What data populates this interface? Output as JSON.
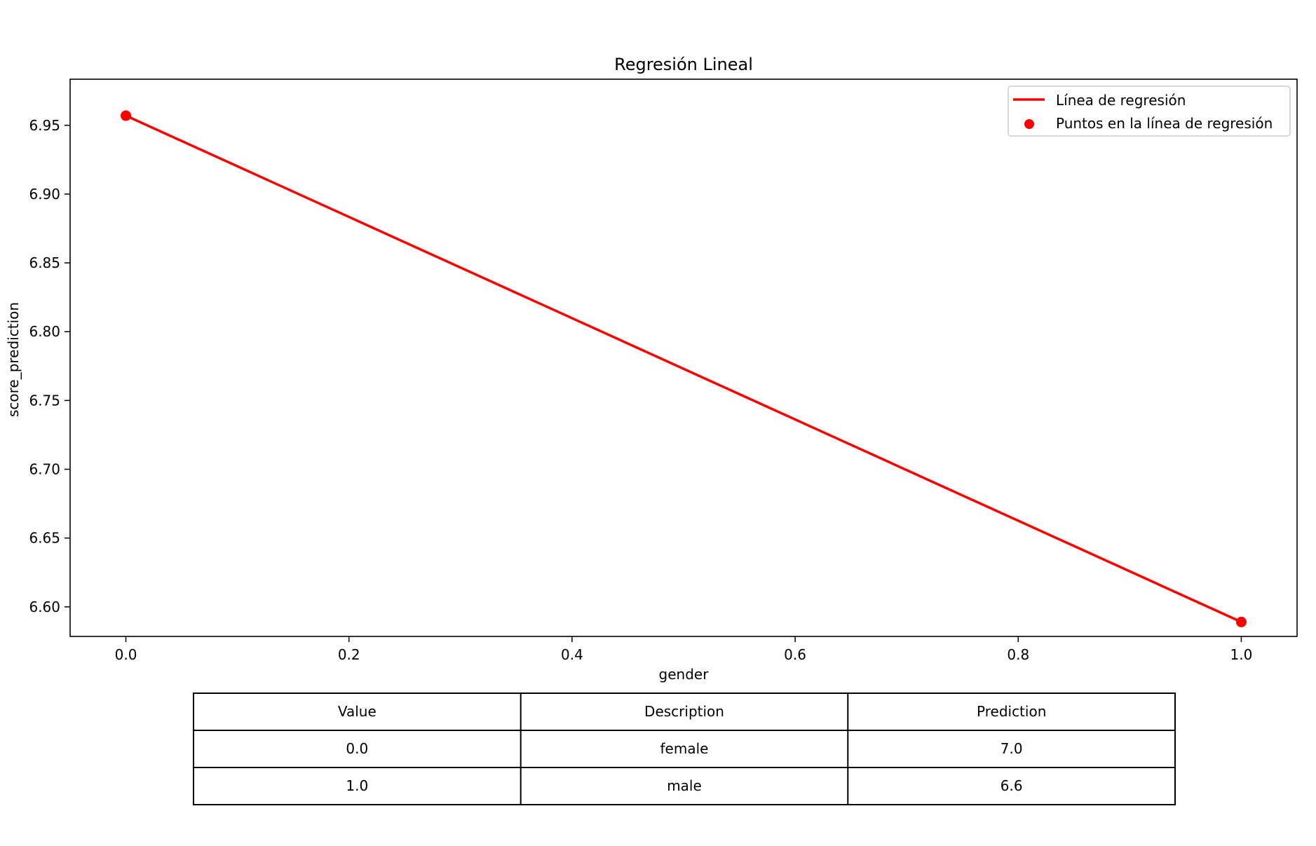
{
  "chart_data": {
    "type": "line",
    "title": "Regresión Lineal",
    "xlabel": "gender",
    "ylabel": "score_prediction",
    "xlim": [
      -0.05,
      1.05
    ],
    "ylim": [
      6.5785,
      6.9835
    ],
    "xticks": [
      0.0,
      0.2,
      0.4,
      0.6,
      0.8,
      1.0
    ],
    "xtick_labels": [
      "0.0",
      "0.2",
      "0.4",
      "0.6",
      "0.8",
      "1.0"
    ],
    "yticks": [
      6.6,
      6.65,
      6.7,
      6.75,
      6.8,
      6.85,
      6.9,
      6.95
    ],
    "ytick_labels": [
      "6.60",
      "6.65",
      "6.70",
      "6.75",
      "6.80",
      "6.85",
      "6.90",
      "6.95"
    ],
    "grid": false,
    "legend_position": "top-right",
    "series": [
      {
        "name": "Línea de regresión",
        "kind": "line",
        "color": "#ff0000",
        "x": [
          0.0,
          1.0
        ],
        "y": [
          6.957,
          6.589
        ]
      },
      {
        "name": "Puntos en la línea de regresión",
        "kind": "scatter",
        "color": "#ff0000",
        "x": [
          0.0,
          1.0
        ],
        "y": [
          6.957,
          6.589
        ]
      }
    ]
  },
  "table": {
    "headers": [
      "Value",
      "Description",
      "Prediction"
    ],
    "rows": [
      [
        "0.0",
        "female",
        "7.0"
      ],
      [
        "1.0",
        "male",
        "6.6"
      ]
    ]
  }
}
